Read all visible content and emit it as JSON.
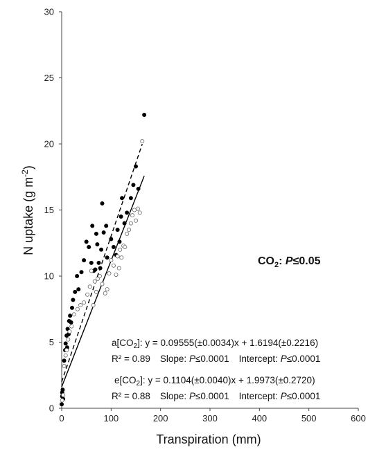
{
  "chart_data": {
    "type": "scatter",
    "title": "",
    "xlabel": "Transpiration (mm)",
    "ylabel_main": "N uptake (g m",
    "ylabel_sup": "-2",
    "ylabel_close": ")",
    "xlim": [
      0,
      600
    ],
    "ylim": [
      0,
      30
    ],
    "x_ticks": [
      0,
      100,
      200,
      300,
      400,
      500,
      600
    ],
    "y_ticks": [
      0,
      5,
      10,
      15,
      20,
      25,
      30
    ],
    "significance": {
      "prefix": "CO",
      "sub": "2",
      "colon": ": ",
      "italic": "P",
      "rest": "≤0.05"
    },
    "series": [
      {
        "marker": "filled-circle",
        "color": "#000000",
        "points": [
          [
            0,
            0.3
          ],
          [
            1,
            0.9
          ],
          [
            1,
            1.2
          ],
          [
            2,
            1.0
          ],
          [
            2,
            1.4
          ],
          [
            3,
            0.7
          ],
          [
            5,
            3.6
          ],
          [
            7,
            4.4
          ],
          [
            8,
            4.9
          ],
          [
            10,
            5.5
          ],
          [
            11,
            4.6
          ],
          [
            12,
            6.0
          ],
          [
            14,
            5.6
          ],
          [
            15,
            6.6
          ],
          [
            17,
            7.0
          ],
          [
            19,
            6.5
          ],
          [
            21,
            7.6
          ],
          [
            23,
            8.2
          ],
          [
            27,
            8.8
          ],
          [
            31,
            10.0
          ],
          [
            34,
            9.0
          ],
          [
            40,
            10.3
          ],
          [
            45,
            11.2
          ],
          [
            50,
            12.6
          ],
          [
            55,
            12.2
          ],
          [
            60,
            11.0
          ],
          [
            62,
            13.8
          ],
          [
            65,
            10.4
          ],
          [
            68,
            10.5
          ],
          [
            70,
            13.2
          ],
          [
            72,
            12.4
          ],
          [
            75,
            11.0
          ],
          [
            78,
            10.6
          ],
          [
            80,
            12.0
          ],
          [
            82,
            15.5
          ],
          [
            85,
            13.3
          ],
          [
            90,
            13.8
          ],
          [
            92,
            11.4
          ],
          [
            100,
            12.8
          ],
          [
            105,
            12.2
          ],
          [
            110,
            11.6
          ],
          [
            113,
            13.5
          ],
          [
            117,
            12.6
          ],
          [
            120,
            14.5
          ],
          [
            122,
            15.9
          ],
          [
            127,
            14.0
          ],
          [
            132,
            14.8
          ],
          [
            140,
            15.9
          ],
          [
            145,
            16.9
          ],
          [
            150,
            18.3
          ],
          [
            155,
            16.6
          ],
          [
            167,
            22.2
          ]
        ]
      },
      {
        "marker": "open-circle",
        "color": "#000000",
        "points": [
          [
            1,
            0.6
          ],
          [
            3,
            1.0
          ],
          [
            5,
            3.2
          ],
          [
            8,
            4.0
          ],
          [
            10,
            4.4
          ],
          [
            13,
            5.2
          ],
          [
            16,
            5.8
          ],
          [
            20,
            6.2
          ],
          [
            25,
            7.1
          ],
          [
            32,
            7.5
          ],
          [
            38,
            7.8
          ],
          [
            45,
            8.0
          ],
          [
            52,
            8.6
          ],
          [
            57,
            9.2
          ],
          [
            60,
            10.4
          ],
          [
            64,
            7.8
          ],
          [
            67,
            9.6
          ],
          [
            70,
            8.8
          ],
          [
            73,
            9.8
          ],
          [
            77,
            10.0
          ],
          [
            82,
            9.4
          ],
          [
            88,
            8.7
          ],
          [
            92,
            9.0
          ],
          [
            96,
            10.2
          ],
          [
            100,
            11.2
          ],
          [
            105,
            10.8
          ],
          [
            110,
            10.1
          ],
          [
            113,
            11.5
          ],
          [
            116,
            10.6
          ],
          [
            118,
            12.0
          ],
          [
            121,
            11.4
          ],
          [
            125,
            12.3
          ],
          [
            128,
            12.2
          ],
          [
            132,
            13.2
          ],
          [
            136,
            13.5
          ],
          [
            140,
            14.0
          ],
          [
            143,
            14.6
          ],
          [
            147,
            15.0
          ],
          [
            150,
            14.2
          ],
          [
            154,
            15.1
          ],
          [
            158,
            14.8
          ],
          [
            163,
            20.2
          ]
        ]
      }
    ],
    "fits": [
      {
        "line_style": "solid",
        "slope": 0.09555,
        "intercept": 1.6194,
        "x_range": [
          0,
          167
        ]
      },
      {
        "line_style": "dashed",
        "slope": 0.1104,
        "intercept": 1.9973,
        "x_range": [
          0,
          163
        ]
      }
    ],
    "annotations": [
      {
        "eq_prefix": "a[CO",
        "eq_sub": "2",
        "eq_rest": "]: y = 0.09555(±0.0034)x + 1.6194(±0.2216)",
        "stats_r2": "R² = 0.89",
        "stats_slope": "Slope: ",
        "stats_slope_p": "P",
        "stats_slope_val": "≤0.0001",
        "stats_int": "Intercept: ",
        "stats_int_p": "P",
        "stats_int_val": "≤0.0001"
      },
      {
        "eq_prefix": "e[CO",
        "eq_sub": "2",
        "eq_rest": "]: y = 0.1104(±0.0040)x + 1.9973(±0.2720)",
        "stats_r2": "R² = 0.88",
        "stats_slope": "Slope: ",
        "stats_slope_p": "P",
        "stats_slope_val": "≤0.0001",
        "stats_int": "Intercept: ",
        "stats_int_p": "P",
        "stats_int_val": "≤0.0001"
      }
    ]
  }
}
